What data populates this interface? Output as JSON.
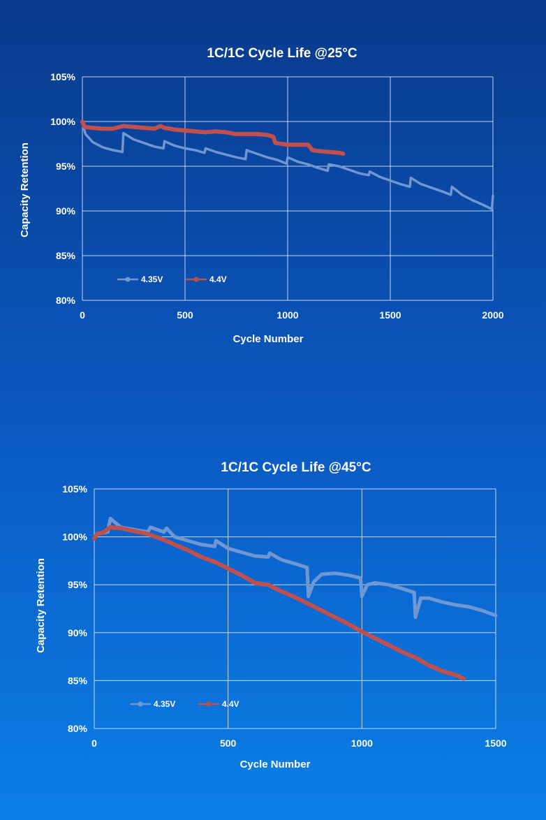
{
  "chart_data": [
    {
      "type": "line",
      "title": "1C/1C Cycle Life @25°C",
      "xlabel": "Cycle Number",
      "ylabel": "Capacity Retention",
      "xlim": [
        0,
        2000
      ],
      "ylim": [
        80,
        105
      ],
      "x_ticks": [
        "0",
        "500",
        "1000",
        "1500",
        "2000"
      ],
      "y_ticks": [
        "80%",
        "85%",
        "90%",
        "95%",
        "100%",
        "105%"
      ],
      "grid": true,
      "legend_position": "bottom-left",
      "colors": {
        "4.35V": "#6f97d3",
        "4.4V": "#c0504d"
      },
      "series": [
        {
          "name": "4.35V",
          "points": [
            [
              0,
              99.9
            ],
            [
              15,
              98.6
            ],
            [
              50,
              97.7
            ],
            [
              100,
              97.1
            ],
            [
              150,
              96.8
            ],
            [
              195,
              96.6
            ],
            [
              200,
              98.7
            ],
            [
              250,
              98.0
            ],
            [
              300,
              97.6
            ],
            [
              350,
              97.2
            ],
            [
              395,
              97.0
            ],
            [
              400,
              97.8
            ],
            [
              450,
              97.3
            ],
            [
              500,
              97.0
            ],
            [
              550,
              96.8
            ],
            [
              595,
              96.5
            ],
            [
              600,
              97.0
            ],
            [
              650,
              96.6
            ],
            [
              700,
              96.3
            ],
            [
              750,
              96.0
            ],
            [
              795,
              95.8
            ],
            [
              800,
              96.8
            ],
            [
              850,
              96.4
            ],
            [
              900,
              96.0
            ],
            [
              950,
              95.7
            ],
            [
              995,
              95.3
            ],
            [
              1000,
              96.0
            ],
            [
              1050,
              95.5
            ],
            [
              1100,
              95.2
            ],
            [
              1150,
              94.8
            ],
            [
              1195,
              94.5
            ],
            [
              1200,
              95.2
            ],
            [
              1250,
              95.0
            ],
            [
              1300,
              94.6
            ],
            [
              1350,
              94.2
            ],
            [
              1395,
              94.0
            ],
            [
              1400,
              94.4
            ],
            [
              1450,
              93.8
            ],
            [
              1500,
              93.4
            ],
            [
              1550,
              93.0
            ],
            [
              1595,
              92.7
            ],
            [
              1600,
              93.7
            ],
            [
              1650,
              93.0
            ],
            [
              1700,
              92.6
            ],
            [
              1750,
              92.2
            ],
            [
              1795,
              91.8
            ],
            [
              1800,
              92.7
            ],
            [
              1850,
              91.8
            ],
            [
              1900,
              91.2
            ],
            [
              1950,
              90.7
            ],
            [
              1995,
              90.2
            ],
            [
              2000,
              91.7
            ]
          ]
        },
        {
          "name": "4.4V",
          "points": [
            [
              0,
              100.0
            ],
            [
              10,
              99.4
            ],
            [
              50,
              99.3
            ],
            [
              100,
              99.2
            ],
            [
              150,
              99.2
            ],
            [
              200,
              99.5
            ],
            [
              250,
              99.4
            ],
            [
              300,
              99.3
            ],
            [
              350,
              99.2
            ],
            [
              380,
              99.5
            ],
            [
              400,
              99.3
            ],
            [
              450,
              99.1
            ],
            [
              500,
              99.0
            ],
            [
              550,
              98.9
            ],
            [
              600,
              98.8
            ],
            [
              650,
              98.9
            ],
            [
              700,
              98.8
            ],
            [
              750,
              98.6
            ],
            [
              800,
              98.6
            ],
            [
              850,
              98.6
            ],
            [
              900,
              98.5
            ],
            [
              930,
              98.3
            ],
            [
              940,
              97.6
            ],
            [
              1000,
              97.4
            ],
            [
              1050,
              97.4
            ],
            [
              1100,
              97.4
            ],
            [
              1120,
              96.8
            ],
            [
              1150,
              96.7
            ],
            [
              1200,
              96.6
            ],
            [
              1250,
              96.5
            ],
            [
              1270,
              96.4
            ]
          ]
        }
      ]
    },
    {
      "type": "line",
      "title": "1C/1C Cycle Life @45°C",
      "xlabel": "Cycle Number",
      "ylabel": "Capacity Retention",
      "xlim": [
        0,
        1500
      ],
      "ylim": [
        80,
        105
      ],
      "x_ticks": [
        "0",
        "500",
        "1000",
        "1500"
      ],
      "y_ticks": [
        "80%",
        "85%",
        "90%",
        "95%",
        "100%",
        "105%"
      ],
      "grid": true,
      "legend_position": "bottom-left",
      "colors": {
        "4.35V": "#6f97d3",
        "4.4V": "#c0504d"
      },
      "series": [
        {
          "name": "4.35V",
          "points": [
            [
              0,
              99.8
            ],
            [
              10,
              100.3
            ],
            [
              50,
              100.5
            ],
            [
              60,
              101.9
            ],
            [
              100,
              101.0
            ],
            [
              200,
              100.5
            ],
            [
              210,
              101.0
            ],
            [
              260,
              100.5
            ],
            [
              270,
              100.9
            ],
            [
              300,
              100.0
            ],
            [
              350,
              99.6
            ],
            [
              400,
              99.2
            ],
            [
              450,
              99.0
            ],
            [
              455,
              99.6
            ],
            [
              500,
              98.8
            ],
            [
              550,
              98.4
            ],
            [
              600,
              98.0
            ],
            [
              650,
              97.9
            ],
            [
              655,
              98.3
            ],
            [
              700,
              97.6
            ],
            [
              750,
              97.2
            ],
            [
              795,
              96.8
            ],
            [
              800,
              93.8
            ],
            [
              820,
              95.3
            ],
            [
              850,
              96.1
            ],
            [
              900,
              96.2
            ],
            [
              950,
              96.0
            ],
            [
              995,
              95.7
            ],
            [
              1000,
              93.8
            ],
            [
              1020,
              95.0
            ],
            [
              1050,
              95.2
            ],
            [
              1100,
              95.0
            ],
            [
              1150,
              94.6
            ],
            [
              1195,
              94.2
            ],
            [
              1200,
              91.6
            ],
            [
              1220,
              93.6
            ],
            [
              1250,
              93.6
            ],
            [
              1300,
              93.2
            ],
            [
              1350,
              92.9
            ],
            [
              1400,
              92.7
            ],
            [
              1450,
              92.3
            ],
            [
              1500,
              91.8
            ]
          ]
        },
        {
          "name": "4.4V",
          "points": [
            [
              0,
              99.8
            ],
            [
              10,
              100.3
            ],
            [
              30,
              100.4
            ],
            [
              60,
              101.0
            ],
            [
              100,
              100.9
            ],
            [
              150,
              100.6
            ],
            [
              200,
              100.3
            ],
            [
              250,
              99.8
            ],
            [
              300,
              99.2
            ],
            [
              350,
              98.6
            ],
            [
              400,
              97.9
            ],
            [
              450,
              97.4
            ],
            [
              500,
              96.7
            ],
            [
              550,
              96.0
            ],
            [
              600,
              95.2
            ],
            [
              650,
              95.0
            ],
            [
              700,
              94.3
            ],
            [
              750,
              93.7
            ],
            [
              800,
              93.0
            ],
            [
              850,
              92.3
            ],
            [
              900,
              91.6
            ],
            [
              950,
              90.9
            ],
            [
              1000,
              90.1
            ],
            [
              1050,
              89.4
            ],
            [
              1100,
              88.7
            ],
            [
              1150,
              88.0
            ],
            [
              1200,
              87.4
            ],
            [
              1250,
              86.6
            ],
            [
              1300,
              86.0
            ],
            [
              1350,
              85.6
            ],
            [
              1380,
              85.2
            ]
          ]
        }
      ]
    }
  ]
}
